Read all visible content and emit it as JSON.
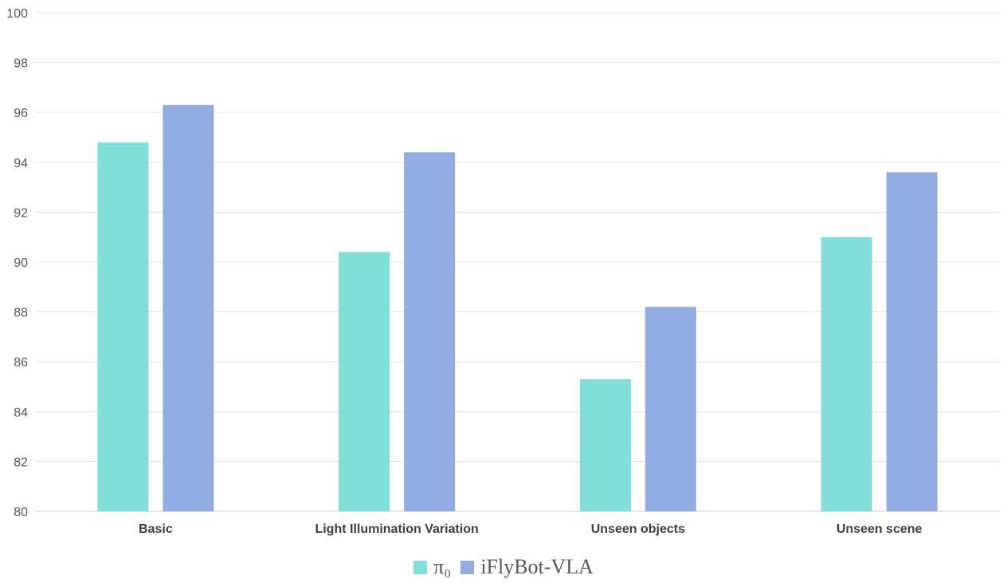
{
  "chart_data": {
    "type": "bar",
    "title": "",
    "xlabel": "",
    "ylabel": "",
    "ylim": [
      80,
      100
    ],
    "yticks": [
      80,
      82,
      84,
      86,
      88,
      90,
      92,
      94,
      96,
      98,
      100
    ],
    "categories": [
      "Basic",
      "Light Illumination Variation",
      "Unseen objects",
      "Unseen scene"
    ],
    "series": [
      {
        "name": "π₀",
        "color": "#80dfd9",
        "values": [
          94.8,
          90.4,
          85.3,
          91.0
        ]
      },
      {
        "name": "iFlyBot-VLA",
        "color": "#91ace1",
        "values": [
          96.3,
          94.4,
          88.2,
          93.6
        ]
      }
    ],
    "grid": true,
    "legend_position": "bottom-center"
  }
}
